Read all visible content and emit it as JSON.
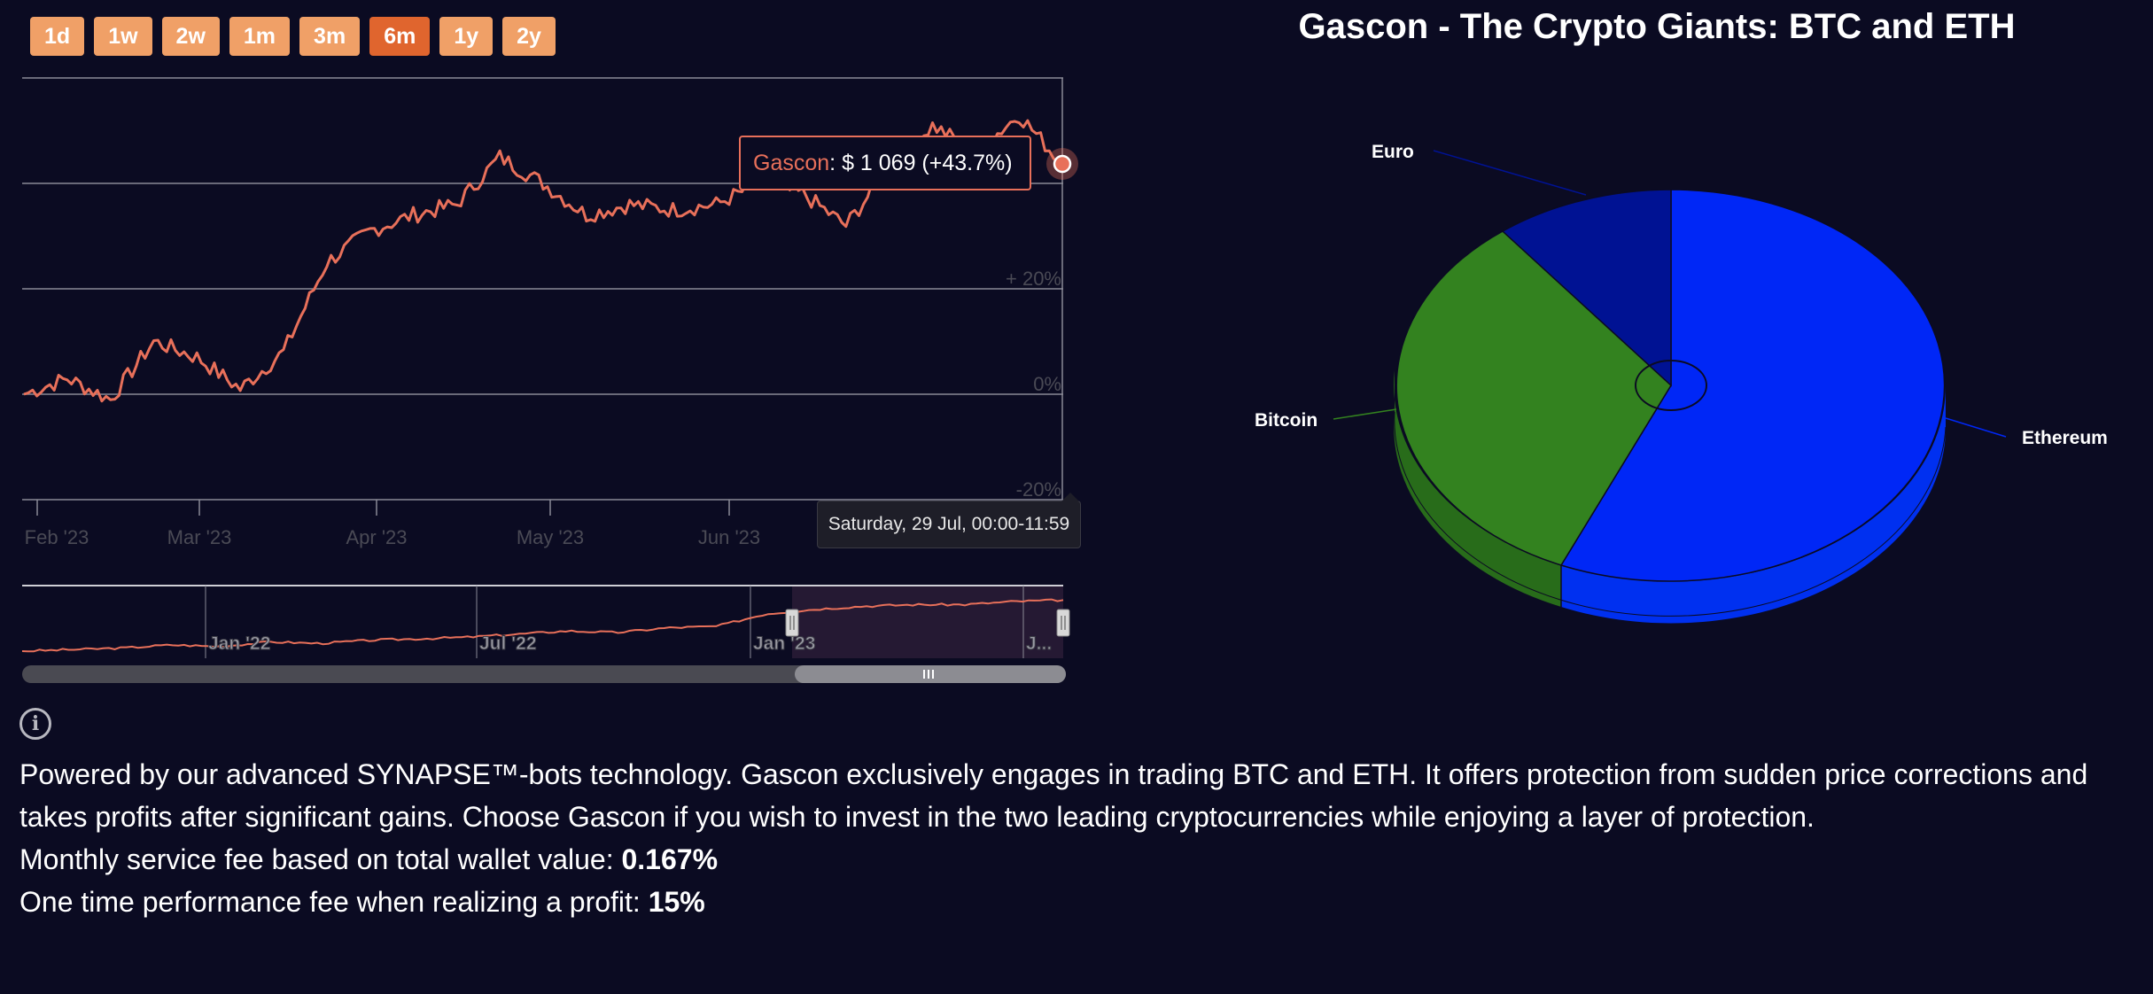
{
  "range_buttons": [
    {
      "label": "1d",
      "active": false
    },
    {
      "label": "1w",
      "active": false
    },
    {
      "label": "2w",
      "active": false
    },
    {
      "label": "1m",
      "active": false
    },
    {
      "label": "3m",
      "active": false
    },
    {
      "label": "6m",
      "active": true
    },
    {
      "label": "1y",
      "active": false
    },
    {
      "label": "2y",
      "active": false
    }
  ],
  "line_chart": {
    "series_color": "#e8705a",
    "y_axis": {
      "ticks": [
        "-20%",
        "0%",
        "+ 20%"
      ],
      "range": [
        -20,
        60
      ]
    },
    "x_axis": {
      "ticks": [
        "Feb '23",
        "Mar '23",
        "Apr '23",
        "May '23",
        "Jun '23"
      ]
    },
    "tooltip": {
      "series": "Gascon",
      "value": ": $ 1 069 (+43.7%)"
    },
    "date_tooltip": "Saturday, 29 Jul, 00:00-11:59"
  },
  "chart_data": [
    {
      "type": "line",
      "series": [
        {
          "name": "Gascon",
          "color": "#e8705a"
        }
      ],
      "x": [
        "Jan '23",
        "Feb '23",
        "Feb '23",
        "Feb '23",
        "Feb '23",
        "Mar '23",
        "Mar '23",
        "Mar '23",
        "Mar '23",
        "Apr '23",
        "Apr '23",
        "Apr '23",
        "Apr '23",
        "May '23",
        "May '23",
        "May '23",
        "May '23",
        "Jun '23",
        "Jun '23",
        "Jun '23",
        "Jun '23",
        "Jul '23",
        "Jul '23",
        "Jul '23",
        "Jul '23"
      ],
      "values": [
        0,
        3,
        -1,
        10,
        7,
        1,
        8,
        25,
        31,
        34,
        36,
        45,
        40,
        34,
        36,
        35,
        36,
        40,
        38,
        32,
        43,
        51,
        46,
        53,
        43.7
      ],
      "yticks": [
        "-20%",
        "0%",
        "+ 20%"
      ],
      "xticks": [
        "Feb '23",
        "Mar '23",
        "Apr '23",
        "May '23",
        "Jun '23"
      ],
      "grid": true
    },
    {
      "type": "line",
      "role": "navigator",
      "x_ticks": [
        "Jan '22",
        "Jul '22",
        "Jan '23",
        "J..."
      ],
      "values": [
        0,
        1,
        2,
        4,
        3,
        6,
        5,
        7,
        8,
        9,
        11,
        13,
        12,
        15,
        16,
        24,
        27,
        29,
        30,
        30,
        32,
        33
      ],
      "selection": [
        0.74,
        1.0
      ]
    },
    {
      "type": "pie",
      "title": "Gascon - The Crypto Giants: BTC and ETH",
      "slices": [
        {
          "label": "Ethereum",
          "value": 59,
          "color": "#0027f6"
        },
        {
          "label": "Bitcoin",
          "value": 31,
          "color": "#33821f"
        },
        {
          "label": "Euro",
          "value": 10,
          "color": "#001293"
        }
      ]
    }
  ],
  "pie_chart": {
    "title": "Gascon - The Crypto Giants: BTC and ETH",
    "labels": {
      "euro": "Euro",
      "bitcoin": "Bitcoin",
      "ethereum": "Ethereum"
    }
  },
  "info": {
    "description": "Powered by our advanced SYNAPSE™-bots technology. Gascon exclusively engages in trading BTC and ETH. It offers protection from sudden price corrections and takes profits after significant gains. Choose Gascon if you wish to invest in the two leading cryptocurrencies while enjoying a layer of protection.",
    "monthly_fee_label": "Monthly service fee based on total wallet value: ",
    "monthly_fee_value": "0.167%",
    "performance_fee_label": "One time performance fee when realizing a profit: ",
    "performance_fee_value": "15%"
  }
}
